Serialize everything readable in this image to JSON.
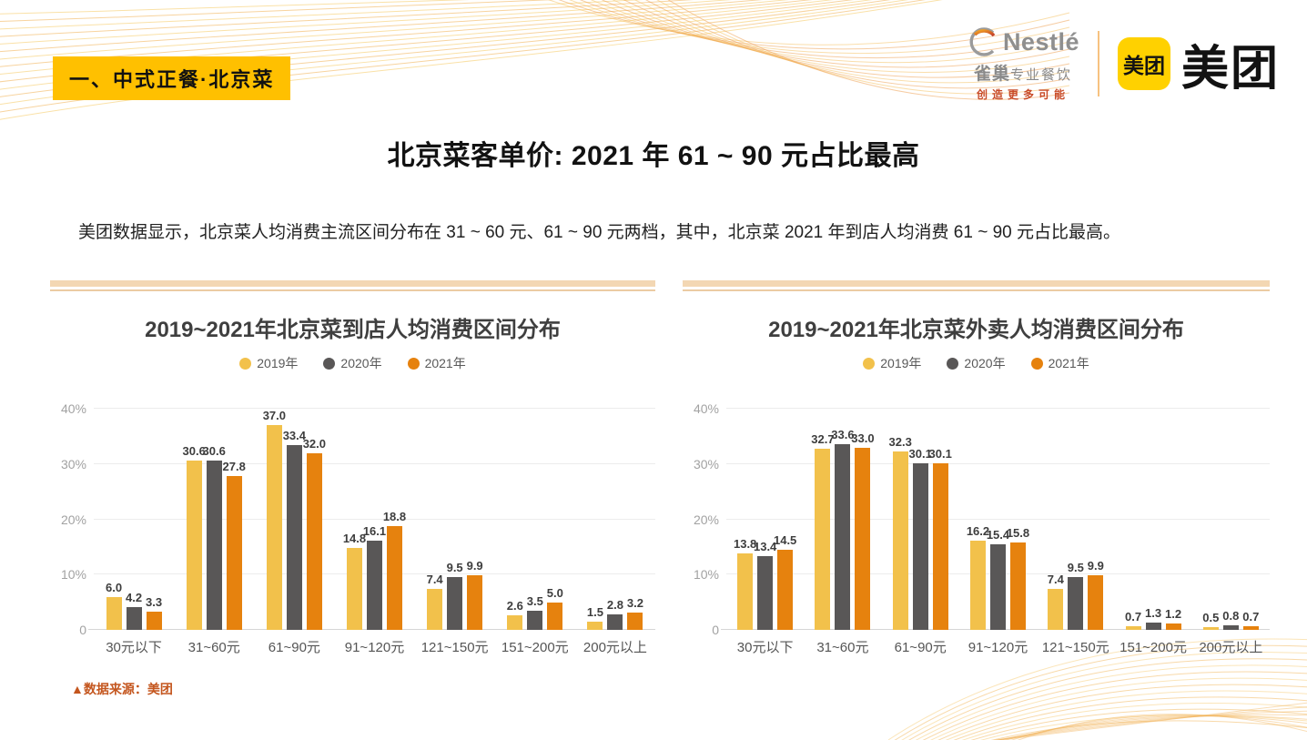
{
  "badge": {
    "label": "一、中式正餐·北京菜"
  },
  "logos": {
    "nestle": {
      "brand": "Nestlé",
      "sub_brand": "雀巢",
      "sub_brand_suffix": "专业餐饮",
      "tagline": "创造更多可能"
    },
    "meituan": {
      "icon_text": "美团",
      "brand_text": "美团"
    }
  },
  "title": "北京菜客单价: 2021 年 61 ~ 90 元占比最高",
  "description": "美团数据显示，北京菜人均消费主流区间分布在 31 ~ 60 元、61 ~ 90 元两档，其中，北京菜 2021 年到店人均消费 61 ~ 90 元占比最高。",
  "source_note": "▲数据来源：美团",
  "colors": {
    "accent_yellow": "#FFC000",
    "bar_2019": "#F2C14B",
    "bar_2020": "#595757",
    "bar_2021": "#E6820E",
    "source_text": "#C4561E",
    "separator_band": "#F3D7B3"
  },
  "chart_data": [
    {
      "type": "bar",
      "title": "2019~2021年北京菜到店人均消费区间分布",
      "categories": [
        "30元以下",
        "31~60元",
        "61~90元",
        "91~120元",
        "121~150元",
        "151~200元",
        "200元以上"
      ],
      "series": [
        {
          "name": "2019年",
          "color": "#F2C14B",
          "values": [
            6.0,
            30.6,
            37.0,
            14.8,
            7.4,
            2.6,
            1.5
          ]
        },
        {
          "name": "2020年",
          "color": "#595757",
          "values": [
            4.2,
            30.6,
            33.4,
            16.1,
            9.5,
            3.5,
            2.8
          ]
        },
        {
          "name": "2021年",
          "color": "#E6820E",
          "values": [
            3.3,
            27.8,
            32.0,
            18.8,
            9.9,
            5.0,
            3.2
          ]
        }
      ],
      "xlabel": "",
      "ylabel": "",
      "ylim": [
        0,
        40
      ],
      "yticks": [
        {
          "v": 0,
          "label": "0"
        },
        {
          "v": 10,
          "label": "10%"
        },
        {
          "v": 20,
          "label": "20%"
        },
        {
          "v": 30,
          "label": "30%"
        },
        {
          "v": 40,
          "label": "40%"
        }
      ],
      "grid": true,
      "legend_position": "top",
      "value_labels": true
    },
    {
      "type": "bar",
      "title": "2019~2021年北京菜外卖人均消费区间分布",
      "categories": [
        "30元以下",
        "31~60元",
        "61~90元",
        "91~120元",
        "121~150元",
        "151~200元",
        "200元以上"
      ],
      "series": [
        {
          "name": "2019年",
          "color": "#F2C14B",
          "values": [
            13.8,
            32.7,
            32.3,
            16.2,
            7.4,
            0.7,
            0.5
          ]
        },
        {
          "name": "2020年",
          "color": "#595757",
          "values": [
            13.4,
            33.6,
            30.1,
            15.4,
            9.5,
            1.3,
            0.8
          ]
        },
        {
          "name": "2021年",
          "color": "#E6820E",
          "values": [
            14.5,
            33.0,
            30.1,
            15.8,
            9.9,
            1.2,
            0.7
          ]
        }
      ],
      "xlabel": "",
      "ylabel": "",
      "ylim": [
        0,
        40
      ],
      "yticks": [
        {
          "v": 0,
          "label": "0"
        },
        {
          "v": 10,
          "label": "10%"
        },
        {
          "v": 20,
          "label": "20%"
        },
        {
          "v": 30,
          "label": "30%"
        },
        {
          "v": 40,
          "label": "40%"
        }
      ],
      "grid": true,
      "legend_position": "top",
      "value_labels": true
    }
  ]
}
